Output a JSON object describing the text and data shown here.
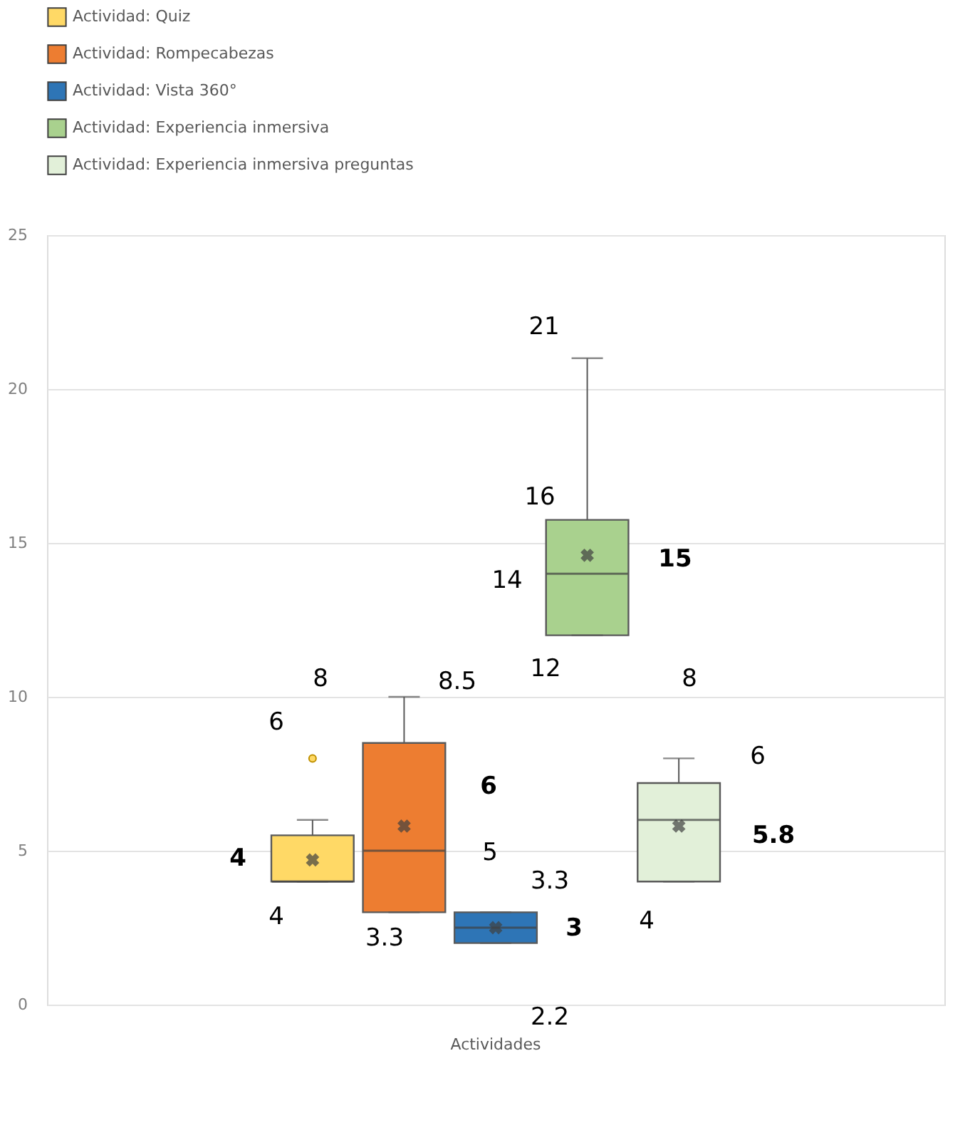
{
  "chart_data": {
    "type": "box",
    "categories": [
      "Actividades"
    ],
    "ylim": [
      0,
      25
    ],
    "yticks": [
      0,
      5,
      10,
      15,
      20,
      25
    ],
    "grid": "y",
    "legend": "top",
    "series": [
      {
        "name": "Actividad: Quiz",
        "color": "#ffd966",
        "boxes": [
          {
            "low": 4,
            "q1": 4,
            "median": 4,
            "q3": 5.5,
            "high": 6,
            "mean": 4.7,
            "outliers": [
              8
            ]
          }
        ]
      },
      {
        "name": "Actividad: Rompecabezas",
        "color": "#ed7d31",
        "boxes": [
          {
            "low": 3,
            "q1": 3,
            "median": 5,
            "q3": 8.5,
            "high": 10,
            "mean": 5.8
          }
        ]
      },
      {
        "name": "Actividad: Vista 360°",
        "color": "#2e75b6",
        "boxes": [
          {
            "low": 2,
            "q1": 2,
            "median": 2.5,
            "q3": 3,
            "high": 3,
            "mean": 2.5
          }
        ]
      },
      {
        "name": "Actividad: Experiencia inmersiva",
        "color": "#a9d18e",
        "boxes": [
          {
            "low": 12,
            "q1": 12,
            "median": 14,
            "q3": 15.75,
            "high": 21,
            "mean": 14.6
          }
        ]
      },
      {
        "name": "Actividad: Experiencia inmersiva preguntas",
        "color": "#e2f0d9",
        "boxes": [
          {
            "low": 4,
            "q1": 4,
            "median": 6,
            "q3": 7.2,
            "high": 8,
            "mean": 5.8
          }
        ]
      }
    ],
    "annotations": [
      "8",
      "6",
      "4",
      "4",
      "8.5",
      "6",
      "5",
      "3.3",
      "3.3",
      "3",
      "2.2",
      "21",
      "16",
      "14",
      "15",
      "12",
      "8",
      "6",
      "5.8",
      "4"
    ]
  }
}
